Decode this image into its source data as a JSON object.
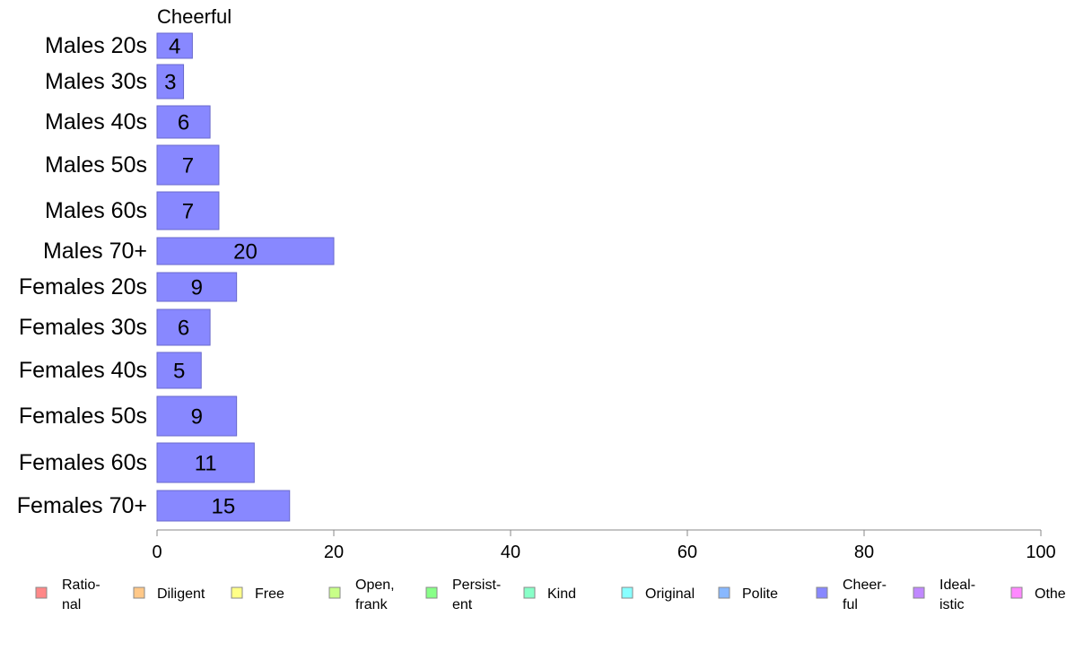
{
  "chart_data": {
    "type": "bar",
    "orientation": "horizontal",
    "title": "Cheerful",
    "categories": [
      "Males 20s",
      "Males 30s",
      "Males 40s",
      "Males 50s",
      "Males 60s",
      "Males 70+",
      "Females 20s",
      "Females 30s",
      "Females 40s",
      "Females 50s",
      "Females 60s",
      "Females 70+"
    ],
    "values": [
      4,
      3,
      6,
      7,
      7,
      20,
      9,
      6,
      5,
      9,
      11,
      15
    ],
    "xlim": [
      0,
      100
    ],
    "xticks": [
      "0",
      "20",
      "40",
      "60",
      "80",
      "100"
    ],
    "xlabel": "",
    "ylabel": "",
    "bar_color": "#8888ff",
    "grid": false,
    "legend": {
      "placement": "bottom",
      "items": [
        {
          "lines": [
            "Ratio-",
            "nal"
          ],
          "color": "#ff8888"
        },
        {
          "lines": [
            "Diligent"
          ],
          "color": "#ffc888"
        },
        {
          "lines": [
            "Free"
          ],
          "color": "#ffff88"
        },
        {
          "lines": [
            "Open,",
            "frank"
          ],
          "color": "#c8ff88"
        },
        {
          "lines": [
            "Persist-",
            "ent"
          ],
          "color": "#88ff88"
        },
        {
          "lines": [
            "Kind"
          ],
          "color": "#88ffc8"
        },
        {
          "lines": [
            "Original"
          ],
          "color": "#88ffff"
        },
        {
          "lines": [
            "Polite"
          ],
          "color": "#88b8ff"
        },
        {
          "lines": [
            "Cheer-",
            "ful"
          ],
          "color": "#8888ff"
        },
        {
          "lines": [
            "Ideal-",
            "istic"
          ],
          "color": "#c088ff"
        },
        {
          "lines": [
            "Other"
          ],
          "color": "#ff88ff"
        }
      ]
    }
  }
}
